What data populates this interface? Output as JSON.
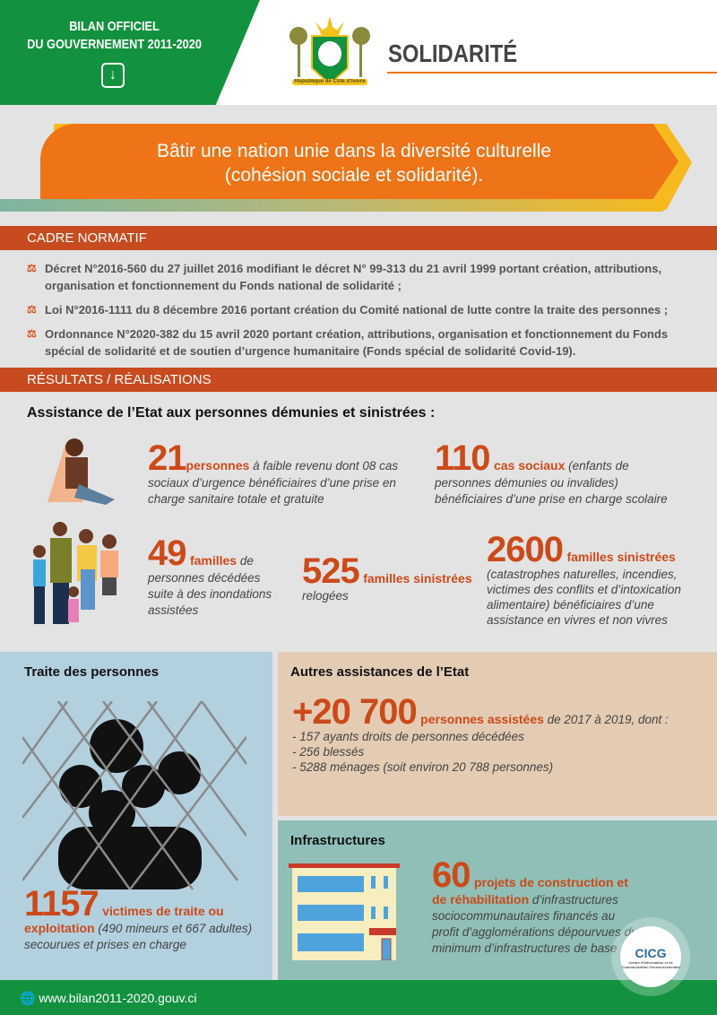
{
  "header": {
    "series_line1": "BILAN OFFICIEL",
    "series_line2": "DU GOUVERNEMENT 2011-2020",
    "download_icon": "download-icon",
    "title": "SOLIDARITÉ",
    "crest_text": "République de Côte d'Ivoire"
  },
  "banner": {
    "line1": "Bâtir une nation unie dans la diversité culturelle",
    "line2": "(cohésion sociale et solidarité)."
  },
  "cadre": {
    "heading": "CADRE NORMATIF",
    "items": [
      "Décret N°2016-560 du 27 juillet 2016 modifiant le décret N° 99-313 du 21 avril 1999 portant création, attributions, organisation et fonctionnement du Fonds national de solidarité ;",
      "Loi N°2016-1111 du 8 décembre 2016 portant création du Comité national de lutte contre la traite des personnes ;",
      "Ordonnance N°2020-382 du 15 avril 2020 portant création, attributions, organisation et fonctionnement du Fonds spécial de solidarité et de soutien d’urgence humanitaire (Fonds spécial de solidarité Covid-19)."
    ]
  },
  "resultats": {
    "heading": "RÉSULTATS / RÉALISATIONS",
    "subheading": "Assistance de l’Etat aux personnes démunies et sinistrées :",
    "stats": [
      {
        "num": "21",
        "hl": "personnes",
        "text": " à faible revenu dont 08 cas sociaux d’urgence bénéficiaires d’une prise en charge sanitaire totale et gratuite"
      },
      {
        "num": "110",
        "hl": "cas sociaux",
        "text": " (enfants de personnes démunies ou invalides) bénéficiaires d’une prise en charge scolaire"
      },
      {
        "num": "49",
        "hl": "familles",
        "text": " de personnes décédées suite à des inondations assistées"
      },
      {
        "num": "525",
        "hl": "familles sinistrées",
        "text": "relogées"
      },
      {
        "num": "2600",
        "hl": "familles sinistrées",
        "text": "(catastrophes naturelles, incendies, victimes des conflits et d’intoxication alimentaire) bénéficiaires d’une assistance  en vivres et non vivres"
      }
    ]
  },
  "traite": {
    "heading": "Traite des personnes",
    "num": "1157",
    "hl": "victimes de traite ou exploitation",
    "text": " (490 mineurs et 667 adultes) secourues et prises en charge"
  },
  "autres": {
    "heading": "Autres assistances de l’Etat",
    "num": "+20 700",
    "hl": "personnes assistées",
    "text": " de 2017 à 2019, dont :",
    "items": [
      "- 157 ayants droits de personnes décédées",
      "- 256 blessés",
      "- 5288 ménages (soit environ 20 788 personnes)"
    ]
  },
  "infra": {
    "heading": "Infrastructures",
    "num": "60",
    "hl": "projets de construction et de réhabilitation",
    "text": " d’infrastructures sociocommunautaires financés au profit d’agglomérations dépourvues du minimum d’infrastructures de base"
  },
  "footer": {
    "url": "www.bilan2011-2020.gouv.ci",
    "logo": "CICG",
    "logo_sub": "Centre d'Information et de Communication Gouvernementale"
  },
  "colors": {
    "green": "#12923e",
    "orange": "#ef7317",
    "section": "#c74b1f",
    "accent_text": "#cc4a1a"
  }
}
